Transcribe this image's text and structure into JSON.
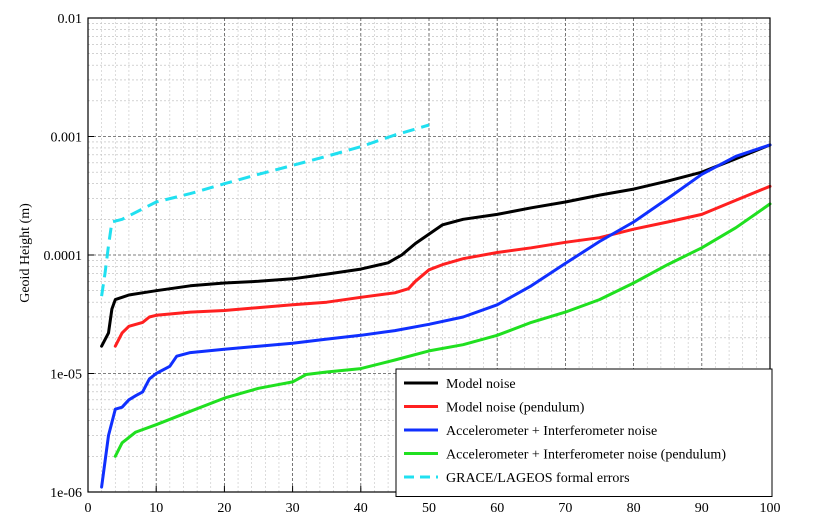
{
  "chart_data": {
    "type": "line",
    "title": "",
    "xlabel": "",
    "ylabel": "Geoid Height (m)",
    "xscale": "linear",
    "yscale": "log",
    "xlim": [
      0,
      100
    ],
    "ylim": [
      1e-06,
      0.01
    ],
    "x_ticks": [
      0,
      10,
      20,
      30,
      40,
      50,
      60,
      70,
      80,
      90,
      100
    ],
    "x_tick_labels": [
      "0",
      "10",
      "20",
      "30",
      "40",
      "50",
      "60",
      "70",
      "80",
      "90",
      "100"
    ],
    "y_ticks": [
      1e-06,
      1e-05,
      0.0001,
      0.001,
      0.01
    ],
    "y_tick_labels": [
      "1e-06",
      "1e-05",
      "0.0001",
      "0.001",
      "0.01"
    ],
    "grid": true,
    "legend_position": "bottom-right",
    "series": [
      {
        "name": "Model noise",
        "color": "#000000",
        "style": "solid",
        "points": [
          [
            2,
            1.7e-05
          ],
          [
            3,
            2.2e-05
          ],
          [
            3.5,
            3.5e-05
          ],
          [
            4,
            4.2e-05
          ],
          [
            5,
            4.4e-05
          ],
          [
            6,
            4.6e-05
          ],
          [
            8,
            4.8e-05
          ],
          [
            10,
            5e-05
          ],
          [
            15,
            5.5e-05
          ],
          [
            20,
            5.8e-05
          ],
          [
            25,
            6e-05
          ],
          [
            30,
            6.3e-05
          ],
          [
            35,
            6.9e-05
          ],
          [
            40,
            7.6e-05
          ],
          [
            44,
            8.6e-05
          ],
          [
            46,
            0.0001
          ],
          [
            48,
            0.000125
          ],
          [
            50,
            0.00015
          ],
          [
            52,
            0.00018
          ],
          [
            55,
            0.0002
          ],
          [
            60,
            0.00022
          ],
          [
            65,
            0.00025
          ],
          [
            70,
            0.00028
          ],
          [
            75,
            0.00032
          ],
          [
            80,
            0.00036
          ],
          [
            85,
            0.00042
          ],
          [
            90,
            0.0005
          ],
          [
            95,
            0.00065
          ],
          [
            100,
            0.00085
          ]
        ]
      },
      {
        "name": "Model noise (pendulum)",
        "color": "#ff2020",
        "style": "solid",
        "points": [
          [
            4,
            1.7e-05
          ],
          [
            5,
            2.2e-05
          ],
          [
            6,
            2.5e-05
          ],
          [
            8,
            2.7e-05
          ],
          [
            9,
            3e-05
          ],
          [
            10,
            3.1e-05
          ],
          [
            15,
            3.3e-05
          ],
          [
            20,
            3.4e-05
          ],
          [
            25,
            3.6e-05
          ],
          [
            30,
            3.8e-05
          ],
          [
            35,
            4e-05
          ],
          [
            40,
            4.4e-05
          ],
          [
            45,
            4.8e-05
          ],
          [
            47,
            5.2e-05
          ],
          [
            48,
            6e-05
          ],
          [
            50,
            7.5e-05
          ],
          [
            52,
            8.3e-05
          ],
          [
            55,
            9.3e-05
          ],
          [
            60,
            0.000105
          ],
          [
            65,
            0.000115
          ],
          [
            70,
            0.000128
          ],
          [
            75,
            0.00014
          ],
          [
            80,
            0.000165
          ],
          [
            85,
            0.00019
          ],
          [
            90,
            0.00022
          ],
          [
            95,
            0.00029
          ],
          [
            100,
            0.00038
          ]
        ]
      },
      {
        "name": "Accelerometer + Interferometer noise",
        "color": "#1030ff",
        "style": "solid",
        "points": [
          [
            2,
            1.1e-06
          ],
          [
            3,
            3e-06
          ],
          [
            4,
            5e-06
          ],
          [
            5,
            5.2e-06
          ],
          [
            6,
            6e-06
          ],
          [
            7,
            6.5e-06
          ],
          [
            8,
            7e-06
          ],
          [
            9,
            9e-06
          ],
          [
            10,
            1e-05
          ],
          [
            12,
            1.15e-05
          ],
          [
            13,
            1.4e-05
          ],
          [
            15,
            1.5e-05
          ],
          [
            20,
            1.6e-05
          ],
          [
            25,
            1.7e-05
          ],
          [
            30,
            1.8e-05
          ],
          [
            35,
            1.95e-05
          ],
          [
            40,
            2.1e-05
          ],
          [
            45,
            2.3e-05
          ],
          [
            50,
            2.6e-05
          ],
          [
            55,
            3e-05
          ],
          [
            60,
            3.8e-05
          ],
          [
            65,
            5.5e-05
          ],
          [
            70,
            8.5e-05
          ],
          [
            75,
            0.00013
          ],
          [
            80,
            0.00019
          ],
          [
            85,
            0.0003
          ],
          [
            90,
            0.00048
          ],
          [
            95,
            0.00068
          ],
          [
            100,
            0.00085
          ]
        ]
      },
      {
        "name": "Accelerometer + Interferometer noise (pendulum)",
        "color": "#20e020",
        "style": "solid",
        "points": [
          [
            4,
            2e-06
          ],
          [
            5,
            2.6e-06
          ],
          [
            7,
            3.2e-06
          ],
          [
            10,
            3.7e-06
          ],
          [
            15,
            4.8e-06
          ],
          [
            20,
            6.2e-06
          ],
          [
            25,
            7.5e-06
          ],
          [
            30,
            8.5e-06
          ],
          [
            32,
            9.8e-06
          ],
          [
            35,
            1.03e-05
          ],
          [
            40,
            1.1e-05
          ],
          [
            45,
            1.3e-05
          ],
          [
            50,
            1.55e-05
          ],
          [
            55,
            1.75e-05
          ],
          [
            60,
            2.1e-05
          ],
          [
            65,
            2.7e-05
          ],
          [
            70,
            3.3e-05
          ],
          [
            75,
            4.2e-05
          ],
          [
            80,
            5.8e-05
          ],
          [
            85,
            8.3e-05
          ],
          [
            90,
            0.000115
          ],
          [
            95,
            0.00017
          ],
          [
            100,
            0.00027
          ]
        ]
      },
      {
        "name": "GRACE/LAGEOS formal errors",
        "color": "#20e0f0",
        "style": "dashed",
        "points": [
          [
            2,
            4.5e-05
          ],
          [
            2.5,
            7e-05
          ],
          [
            3,
            0.00012
          ],
          [
            3.5,
            0.00019
          ],
          [
            5,
            0.0002
          ],
          [
            10,
            0.00028
          ],
          [
            15,
            0.00033
          ],
          [
            20,
            0.0004
          ],
          [
            25,
            0.00048
          ],
          [
            30,
            0.00057
          ],
          [
            35,
            0.00068
          ],
          [
            40,
            0.00082
          ],
          [
            45,
            0.00103
          ],
          [
            50,
            0.00125
          ]
        ]
      }
    ]
  }
}
